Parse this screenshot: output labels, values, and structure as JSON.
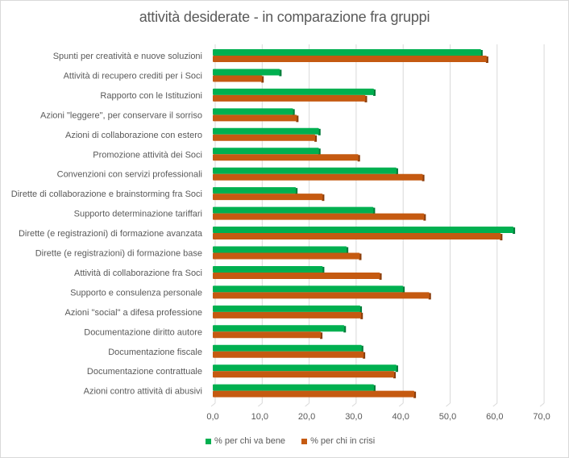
{
  "chart_data": {
    "type": "bar",
    "orientation": "horizontal",
    "title": "attività desiderate - in comparazione fra gruppi",
    "xlabel": "",
    "ylabel": "",
    "xlim": [
      0,
      70
    ],
    "x_ticks": [
      "0,0",
      "10,0",
      "20,0",
      "30,0",
      "40,0",
      "50,0",
      "60,0",
      "70,0"
    ],
    "grid": true,
    "legend_position": "bottom",
    "categories": [
      "Spunti per creatività e nuove soluzioni",
      "Attività di recupero crediti per i Soci",
      "Rapporto con le Istituzioni",
      "Azioni \"leggere\", per conservare il sorriso",
      "Azioni di collaborazione con estero",
      "Promozione attività dei Soci",
      "Convenzioni con servizi professionali",
      "Dirette di collaborazione e brainstorming fra Soci",
      "Supporto determinazione tariffari",
      "Dirette (e registrazioni) di formazione avanzata",
      "Dirette (e registrazioni) di formazione base",
      "Attività di collaborazione fra Soci",
      "Supporto e consulenza personale",
      "Azioni \"social\" a difesa professione",
      "Documentazione diritto autore",
      "Documentazione fiscale",
      "Documentazione contrattuale",
      "Azioni contro attività di abusivi"
    ],
    "series": [
      {
        "name": "% per chi va bene",
        "color": "#00B050",
        "values": [
          57.1,
          14.3,
          34.3,
          17.1,
          22.6,
          22.6,
          39.1,
          17.7,
          34.2,
          64.0,
          28.5,
          23.4,
          40.5,
          31.4,
          28.0,
          31.7,
          39.1,
          34.3
        ]
      },
      {
        "name": "% per chi in crisi",
        "color": "#C55A11",
        "values": [
          58.3,
          10.5,
          32.5,
          17.9,
          21.8,
          31.0,
          44.7,
          23.4,
          45.0,
          61.3,
          31.3,
          35.6,
          46.1,
          31.6,
          23.0,
          32.1,
          38.6,
          42.9
        ]
      }
    ]
  },
  "legend": {
    "items": [
      {
        "label": "% per chi va bene",
        "color": "#00B050"
      },
      {
        "label": "% per chi in crisi",
        "color": "#C55A11"
      }
    ]
  }
}
